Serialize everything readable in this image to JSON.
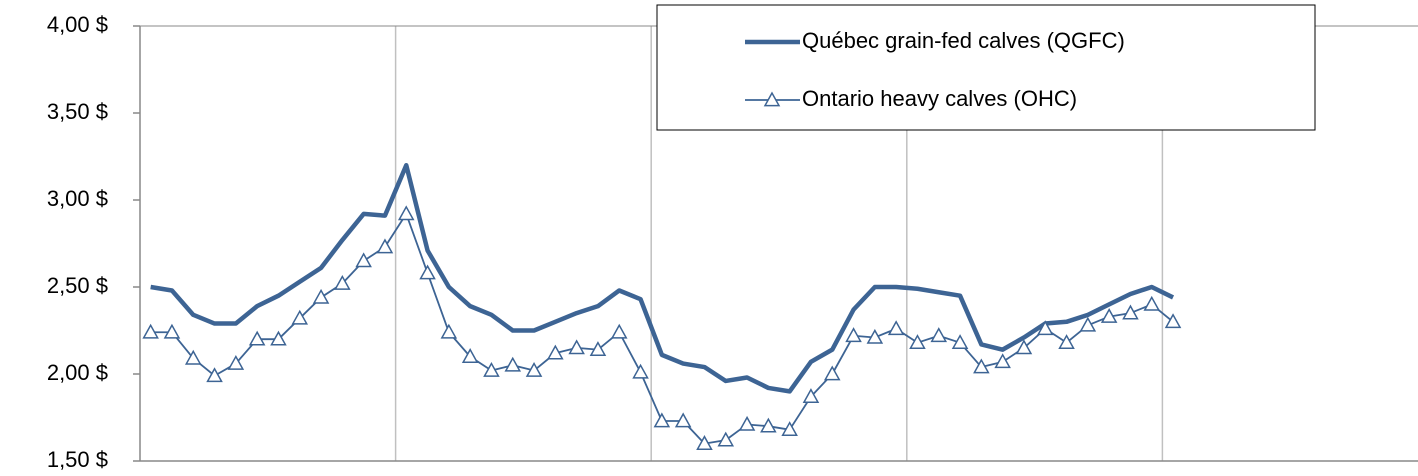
{
  "chart_data": {
    "type": "line",
    "categories": [
      null,
      null,
      null,
      null,
      null,
      null,
      null,
      null,
      null,
      null,
      null,
      null,
      null,
      null,
      null,
      null,
      null,
      null,
      null,
      null,
      null,
      null,
      null,
      null,
      null,
      null,
      null,
      null,
      null,
      null,
      null,
      null,
      null,
      null,
      null,
      null,
      null,
      null,
      null,
      null,
      null,
      null,
      null,
      null,
      null,
      null,
      null,
      null,
      null,
      null,
      null,
      null,
      null,
      null,
      null,
      null,
      null,
      null,
      null,
      null
    ],
    "series": [
      {
        "name": "Québec grain-fed calves (QGFC)",
        "color": "#3d6494",
        "marker": "none",
        "values": [
          2.5,
          2.48,
          2.34,
          2.29,
          2.29,
          2.39,
          2.45,
          2.53,
          2.61,
          2.77,
          2.92,
          2.91,
          3.2,
          2.71,
          2.5,
          2.39,
          2.34,
          2.25,
          2.25,
          2.3,
          2.35,
          2.39,
          2.48,
          2.43,
          2.11,
          2.06,
          2.04,
          1.96,
          1.98,
          1.92,
          1.9,
          2.07,
          2.14,
          2.37,
          2.5,
          2.5,
          2.49,
          2.47,
          2.45,
          2.17,
          2.14,
          2.21,
          2.29,
          2.3,
          2.34,
          2.4,
          2.46,
          2.5,
          2.44,
          null,
          null,
          null,
          null,
          null,
          null,
          null,
          null,
          null,
          null,
          null
        ]
      },
      {
        "name": "Ontario heavy calves (OHC)",
        "color": "#3d6494",
        "marker": "triangle",
        "values": [
          2.24,
          2.24,
          2.09,
          1.99,
          2.06,
          2.2,
          2.2,
          2.32,
          2.44,
          2.52,
          2.65,
          2.73,
          2.92,
          2.58,
          2.24,
          2.1,
          2.02,
          2.05,
          2.02,
          2.12,
          2.15,
          2.14,
          2.24,
          2.01,
          1.73,
          1.73,
          1.6,
          1.62,
          1.71,
          1.7,
          1.68,
          1.87,
          2.0,
          2.22,
          2.21,
          2.26,
          2.18,
          2.22,
          2.18,
          2.04,
          2.07,
          2.15,
          2.26,
          2.18,
          2.28,
          2.33,
          2.35,
          2.4,
          2.3,
          null,
          null,
          null,
          null,
          null,
          null,
          null,
          null,
          null,
          null,
          null
        ]
      }
    ],
    "ylim": [
      1.5,
      4.0
    ],
    "yticks": [
      {
        "value": 1.5,
        "label": "1,50  $"
      },
      {
        "value": 2.0,
        "label": "2,00  $"
      },
      {
        "value": 2.5,
        "label": "2,50  $"
      },
      {
        "value": 3.0,
        "label": "3,00  $"
      },
      {
        "value": 3.5,
        "label": "3,50  $"
      },
      {
        "value": 4.0,
        "label": "4,00  $"
      }
    ],
    "vertical_grid_every": 12,
    "legend": "top-right"
  }
}
